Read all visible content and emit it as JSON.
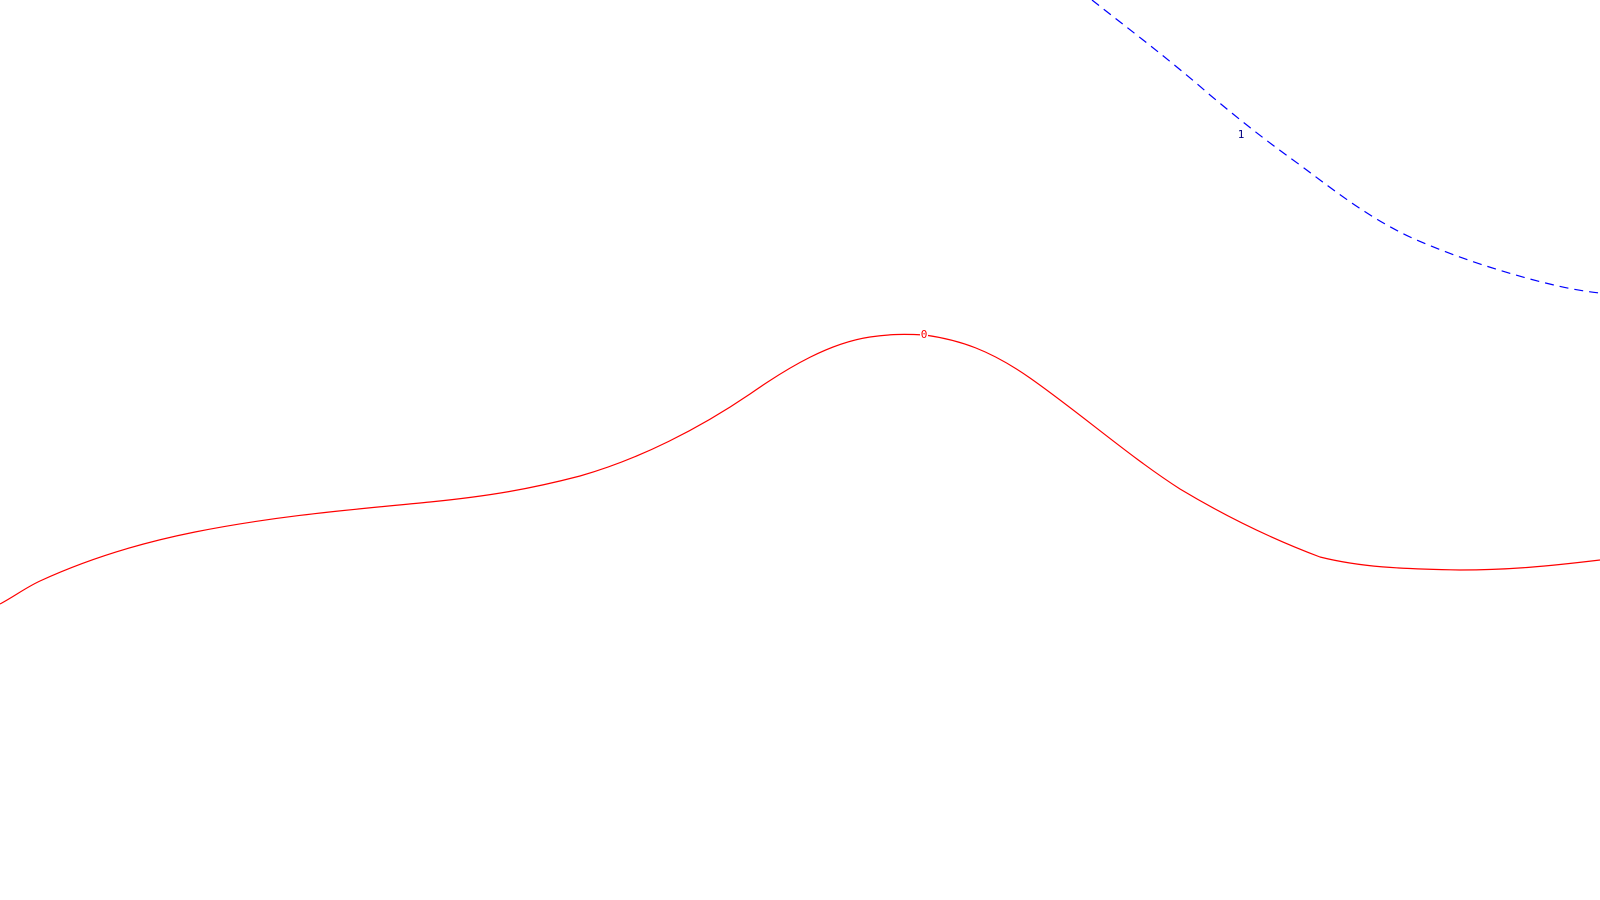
{
  "contours": [
    {
      "id": "contour-0",
      "label": "0",
      "color": "#ff0000",
      "style": "solid"
    },
    {
      "id": "contour-1",
      "label": "1",
      "color": "#0000ff",
      "label_color": "#000080",
      "style": "dashed"
    }
  ]
}
